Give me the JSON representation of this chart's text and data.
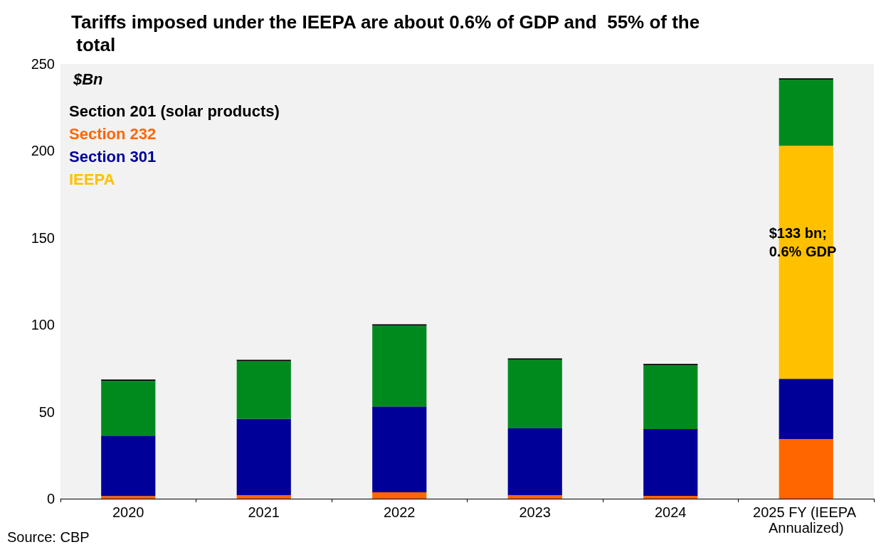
{
  "chart_data": {
    "type": "bar",
    "title": "Tariffs imposed under the IEEPA are about 0.6% of GDP and  55% of the total",
    "ylabel": "$Bn",
    "stacked": true,
    "categories": [
      "2020",
      "2021",
      "2022",
      "2023",
      "2024",
      "2025 FY (IEEPA Annualized)"
    ],
    "series": [
      {
        "name": "Section 232",
        "color": "#ff6600",
        "values": [
          1.5,
          2,
          3.7,
          2,
          1.6,
          34.3
        ]
      },
      {
        "name": "Section 301",
        "color": "#000099",
        "values": [
          34.8,
          44,
          49.3,
          38.4,
          38.4,
          34.6
        ]
      },
      {
        "name": "IEEPA",
        "color": "#ffc000",
        "values": [
          null,
          null,
          null,
          null,
          null,
          134
        ]
      },
      {
        "color": "#008a1e",
        "values": [
          31.4,
          33,
          46.5,
          39.5,
          36.7,
          38
        ]
      },
      {
        "name": "Section 201 (solar products)",
        "color": "#000000",
        "values": [
          0.8,
          0.9,
          0.8,
          0.8,
          0.8,
          0.8
        ]
      }
    ],
    "ylim": [
      0,
      250
    ],
    "yticks": [
      0,
      50,
      100,
      150,
      200,
      250
    ],
    "grid": false,
    "legend": "top left",
    "annotations": [
      "$133 bn; 0.6% GDP",
      "Source: CBP"
    ]
  }
}
